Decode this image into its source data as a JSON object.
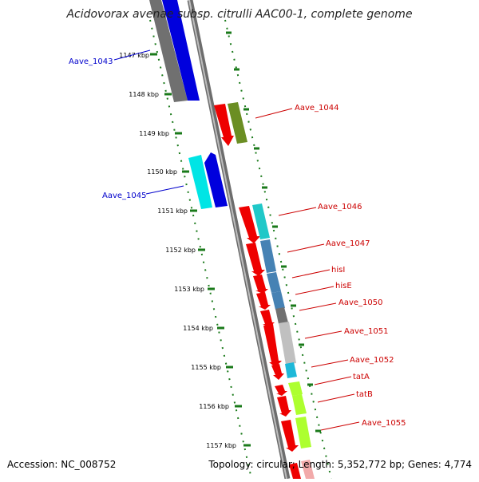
{
  "title": "Acidovorax avenae subsp. citrulli AAC00-1, complete genome",
  "accession": "Accession: NC_008752",
  "summary": "Topology: circular; Length: 5,352,772 bp; Genes: 4,774",
  "colors": {
    "forward_label": "#0000cc",
    "reverse_label": "#cc0000",
    "ruler": "#1a7a1a"
  },
  "ruler_labels": [
    "1147 kbp",
    "1148 kbp",
    "1149 kbp",
    "1150 kbp",
    "1151 kbp",
    "1152 kbp",
    "1153 kbp",
    "1154 kbp",
    "1155 kbp",
    "1156 kbp",
    "1157 kbp"
  ],
  "genes_left": [
    "Aave_1043",
    "Aave_1045"
  ],
  "genes_right": [
    "Aave_1044",
    "Aave_1046",
    "Aave_1047",
    "hisI",
    "hisE",
    "Aave_1050",
    "Aave_1051",
    "Aave_1052",
    "tatA",
    "tatB",
    "Aave_1055"
  ]
}
